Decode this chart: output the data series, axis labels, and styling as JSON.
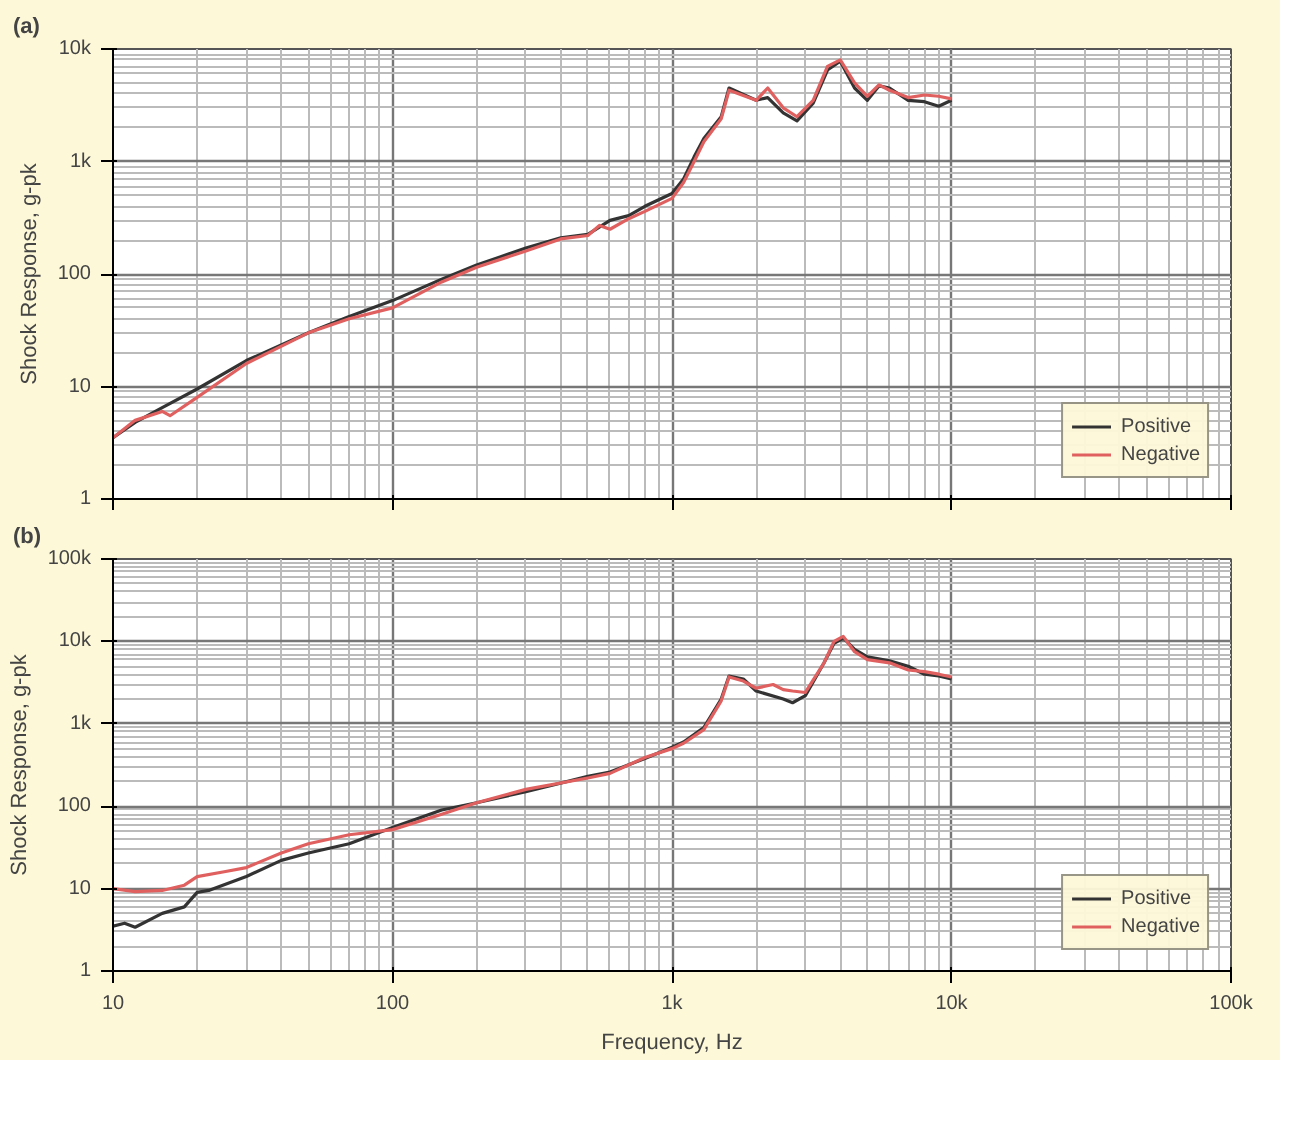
{
  "chart_data": [
    {
      "type": "line",
      "title": "(a)",
      "ylabel": "Shock Response, g-pk",
      "log": "xy",
      "grid": true,
      "legend": "bottom right",
      "tick_labels": "y",
      "xlim": [
        10,
        100000
      ],
      "xticks": [
        {
          "value": 10,
          "label": null
        },
        {
          "value": 100,
          "label": null
        },
        {
          "value": 1000,
          "label": null
        },
        {
          "value": 10000,
          "label": null
        },
        {
          "value": 100000,
          "label": null
        }
      ],
      "ylim": [
        1,
        10000
      ],
      "yticks": [
        1,
        10,
        100,
        {
          "value": 1000,
          "label": "1k"
        },
        {
          "value": 10000,
          "label": "10k"
        }
      ],
      "series": [
        {
          "name": "Positive",
          "color": "#333333",
          "x": [
            10,
            12,
            15,
            20,
            30,
            50,
            70,
            100,
            150,
            200,
            300,
            400,
            500,
            600,
            700,
            800,
            1000,
            1100,
            1200,
            1300,
            1500,
            1600,
            2000,
            2200,
            2500,
            2800,
            3200,
            3600,
            4000,
            4500,
            5000,
            5500,
            6000,
            7000,
            8000,
            9000,
            10000
          ],
          "values": [
            3.5,
            4.8,
            6.5,
            9.5,
            17,
            30,
            42,
            58,
            90,
            120,
            170,
            210,
            225,
            300,
            330,
            400,
            520,
            700,
            1100,
            1600,
            2500,
            4500,
            3500,
            3700,
            2700,
            2300,
            3300,
            6500,
            7800,
            4500,
            3500,
            4700,
            4500,
            3500,
            3400,
            3100,
            3500
          ]
        },
        {
          "name": "Negative",
          "color": "#e06060",
          "x": [
            10,
            12,
            15,
            16,
            20,
            30,
            50,
            70,
            100,
            150,
            200,
            300,
            400,
            500,
            550,
            600,
            700,
            800,
            1000,
            1100,
            1200,
            1300,
            1500,
            1600,
            2000,
            2200,
            2500,
            2800,
            3200,
            3600,
            4000,
            4500,
            5000,
            5500,
            6000,
            7000,
            8000,
            9000,
            10000
          ],
          "values": [
            3.5,
            5,
            6,
            5.5,
            8,
            16,
            30,
            40,
            50,
            85,
            115,
            160,
            205,
            220,
            270,
            250,
            310,
            360,
            470,
            650,
            1000,
            1500,
            2400,
            4300,
            3500,
            4500,
            3000,
            2500,
            3500,
            7000,
            8000,
            5000,
            3800,
            4800,
            4300,
            3700,
            3900,
            3800,
            3600
          ]
        }
      ]
    },
    {
      "type": "line",
      "title": "(b)",
      "xlabel": "Frequency, Hz",
      "ylabel": "Shock Response, g-pk",
      "log": "xy",
      "grid": true,
      "legend": "bottom right",
      "xlim": [
        10,
        100000
      ],
      "xticks": [
        10,
        100,
        {
          "value": 1000,
          "label": "1k"
        },
        {
          "value": 10000,
          "label": "10k"
        },
        {
          "value": 100000,
          "label": "100k"
        }
      ],
      "ylim": [
        1,
        100000
      ],
      "yticks": [
        1,
        10,
        100,
        {
          "value": 1000,
          "label": "1k"
        },
        {
          "value": 10000,
          "label": "10k"
        },
        {
          "value": 100000,
          "label": "100k"
        }
      ],
      "series": [
        {
          "name": "Positive",
          "color": "#333333",
          "x": [
            10,
            11,
            12,
            15,
            18,
            20,
            22,
            30,
            40,
            50,
            70,
            100,
            150,
            200,
            300,
            500,
            600,
            800,
            1000,
            1100,
            1300,
            1500,
            1600,
            1800,
            2000,
            2500,
            2700,
            3000,
            3500,
            3800,
            4100,
            4500,
            5000,
            6000,
            7000,
            8000,
            9000,
            10000
          ],
          "values": [
            3.5,
            3.8,
            3.4,
            5,
            6,
            9,
            9.5,
            14,
            22,
            27,
            35,
            55,
            90,
            110,
            150,
            230,
            260,
            380,
            520,
            600,
            900,
            2000,
            3800,
            3500,
            2500,
            2000,
            1800,
            2200,
            5500,
            9500,
            11000,
            8000,
            6500,
            5800,
            5000,
            4000,
            3800,
            3500
          ]
        },
        {
          "name": "Negative",
          "color": "#e06060",
          "x": [
            10,
            12,
            15,
            18,
            20,
            25,
            30,
            40,
            50,
            70,
            100,
            150,
            200,
            300,
            500,
            600,
            800,
            1000,
            1100,
            1300,
            1500,
            1600,
            1800,
            2000,
            2300,
            2500,
            2700,
            3000,
            3500,
            3800,
            4100,
            4500,
            5000,
            6000,
            7000,
            8000,
            9000,
            10000
          ],
          "values": [
            10,
            9.2,
            9.5,
            11,
            14,
            16,
            18,
            27,
            35,
            45,
            52,
            80,
            110,
            160,
            220,
            250,
            390,
            500,
            580,
            850,
            1900,
            3700,
            3300,
            2700,
            3000,
            2600,
            2500,
            2400,
            5500,
            10000,
            11500,
            7500,
            6000,
            5500,
            4500,
            4300,
            4000,
            3700
          ]
        }
      ]
    }
  ]
}
